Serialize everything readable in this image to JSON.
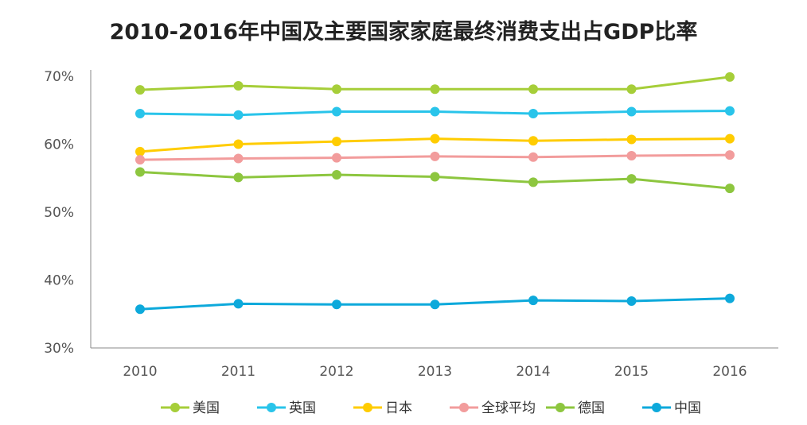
{
  "chart_data": {
    "type": "line",
    "title": "2010-2016年中国及主要国家家庭最终消费支出占GDP比率",
    "xlabel": "",
    "ylabel": "",
    "x": [
      "2010",
      "2011",
      "2012",
      "2013",
      "2014",
      "2015",
      "2016"
    ],
    "ylim": [
      30,
      70
    ],
    "yticks": [
      30,
      40,
      50,
      60,
      70
    ],
    "ytick_labels": [
      "30%",
      "40%",
      "50%",
      "60%",
      "70%"
    ],
    "legend_position": "bottom",
    "grid": false,
    "series": [
      {
        "name": "美国",
        "color": "#A6CE39",
        "values": [
          68.0,
          68.6,
          68.1,
          68.1,
          68.1,
          68.1,
          69.9
        ]
      },
      {
        "name": "英国",
        "color": "#29C4EA",
        "values": [
          64.5,
          64.3,
          64.8,
          64.8,
          64.5,
          64.8,
          64.9
        ]
      },
      {
        "name": "日本",
        "color": "#FFCC00",
        "values": [
          58.9,
          60.0,
          60.4,
          60.8,
          60.5,
          60.7,
          60.8
        ]
      },
      {
        "name": "全球平均",
        "color": "#F29C9C",
        "values": [
          57.7,
          57.9,
          58.0,
          58.2,
          58.1,
          58.3,
          58.4
        ]
      },
      {
        "name": "德国",
        "color": "#8DC63F",
        "values": [
          55.9,
          55.1,
          55.5,
          55.2,
          54.4,
          54.9,
          53.5
        ]
      },
      {
        "name": "中国",
        "color": "#0DA9DB",
        "values": [
          35.7,
          36.5,
          36.4,
          36.4,
          37.0,
          36.9,
          37.3
        ]
      }
    ]
  }
}
